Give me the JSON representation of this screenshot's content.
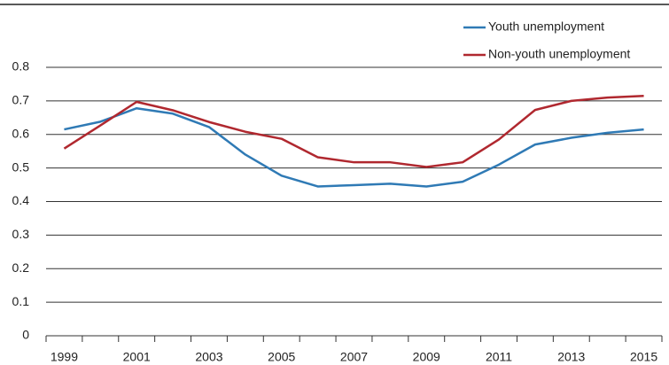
{
  "chart_data": {
    "type": "line",
    "categories": [
      "1999",
      null,
      "2001",
      null,
      "2003",
      null,
      "2005",
      null,
      "2007",
      null,
      "2009",
      null,
      "2011",
      null,
      "2013",
      null,
      "2015"
    ],
    "series": [
      {
        "name": "Youth unemployment",
        "color": "#2f7ab5",
        "values": [
          0.615,
          0.638,
          0.678,
          0.662,
          0.622,
          0.54,
          0.477,
          0.445,
          0.449,
          0.453,
          0.445,
          0.459,
          0.51,
          0.57,
          0.59,
          0.605,
          0.615
        ]
      },
      {
        "name": "Non-youth unemployment",
        "color": "#b0282f",
        "values": [
          0.558,
          0.627,
          0.697,
          0.672,
          0.637,
          0.608,
          0.587,
          0.532,
          0.517,
          0.517,
          0.503,
          0.517,
          0.585,
          0.673,
          0.7,
          0.71,
          0.715
        ]
      }
    ],
    "ylim": [
      0,
      0.8
    ],
    "yticks": [
      0,
      0.1,
      0.2,
      0.3,
      0.4,
      0.5,
      0.6,
      0.7,
      0.8
    ],
    "grid": true,
    "legend": "top-right"
  }
}
